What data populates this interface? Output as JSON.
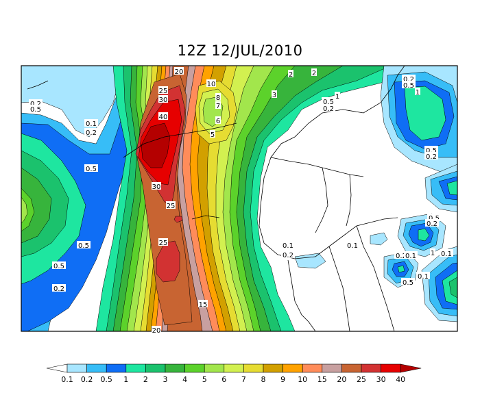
{
  "title": "12Z 12/JUL/2010",
  "colorbar": {
    "ticks": [
      "0.1",
      "0.2",
      "0.5",
      "1",
      "2",
      "3",
      "4",
      "5",
      "6",
      "7",
      "8",
      "9",
      "10",
      "15",
      "20",
      "25",
      "30",
      "40"
    ],
    "colors": [
      "#ffffff",
      "#a8e6ff",
      "#37bdf7",
      "#0f6ef5",
      "#1ee6a0",
      "#1bc26d",
      "#37b43c",
      "#5cd22b",
      "#a2e64c",
      "#d2f050",
      "#e6dc32",
      "#d2a000",
      "#ffa200",
      "#ff8c5a",
      "#c8a0a0",
      "#c86432",
      "#d23232",
      "#e60000",
      "#b40000"
    ]
  },
  "map": {
    "palette": {
      "L0": "#ffffff",
      "L01": "#a8e6ff",
      "L02": "#37bdf7",
      "L05": "#0f6ef5",
      "L1": "#1ee6a0",
      "L2": "#1bc26d",
      "L3": "#37b43c",
      "L4": "#5cd22b",
      "L5": "#a2e64c",
      "L6": "#d2f050",
      "L7": "#e6dc32",
      "L8": "#d2a000",
      "L9": "#ffa200",
      "L10": "#ff8c5a",
      "L15": "#c8a0a0",
      "L20": "#c86432",
      "L25": "#d23232",
      "L30": "#e60000",
      "L40": "#b40000"
    },
    "labels": [
      {
        "text": "20"
      },
      {
        "text": "25"
      },
      {
        "text": "30"
      },
      {
        "text": "40"
      },
      {
        "text": "30"
      },
      {
        "text": "25"
      },
      {
        "text": "25"
      },
      {
        "text": "15"
      },
      {
        "text": "20"
      },
      {
        "text": "10"
      },
      {
        "text": "8"
      },
      {
        "text": "7"
      },
      {
        "text": "6"
      },
      {
        "text": "5"
      },
      {
        "text": "3"
      },
      {
        "text": "2"
      },
      {
        "text": "2"
      },
      {
        "text": "1"
      },
      {
        "text": "0.5"
      },
      {
        "text": "0.2"
      },
      {
        "text": "0.2"
      },
      {
        "text": "0.5"
      },
      {
        "text": "0.1"
      },
      {
        "text": "0.2"
      },
      {
        "text": "0.5"
      },
      {
        "text": "0.5"
      },
      {
        "text": "0.5"
      },
      {
        "text": "0.2"
      },
      {
        "text": "0.2"
      },
      {
        "text": "0.5"
      },
      {
        "text": "1"
      },
      {
        "text": "0.5"
      },
      {
        "text": "0.2"
      },
      {
        "text": "0.1"
      },
      {
        "text": "0.2"
      },
      {
        "text": "0.1"
      },
      {
        "text": "0.5"
      },
      {
        "text": "0.2"
      },
      {
        "text": "1"
      },
      {
        "text": "0.2"
      },
      {
        "text": "0.1"
      },
      {
        "text": "0.5"
      },
      {
        "text": "0.1"
      },
      {
        "text": "1"
      },
      {
        "text": "0.1"
      }
    ]
  }
}
